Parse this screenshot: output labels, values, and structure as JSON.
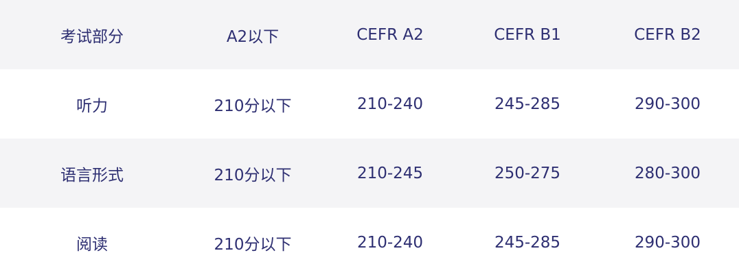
{
  "table": {
    "headers": [
      "考试部分",
      "A2以下",
      "CEFR A2",
      "CEFR B1",
      "CEFR B2"
    ],
    "rows": [
      [
        "听力",
        "210分以下",
        "210-240",
        "245-285",
        "290-300"
      ],
      [
        "语言形式",
        "210分以下",
        "210-245",
        "250-275",
        "280-300"
      ],
      [
        "阅读",
        "210分以下",
        "210-240",
        "245-285",
        "290-300"
      ]
    ]
  },
  "colors": {
    "text": "#2e2f72",
    "stripe": "#f4f4f6"
  }
}
